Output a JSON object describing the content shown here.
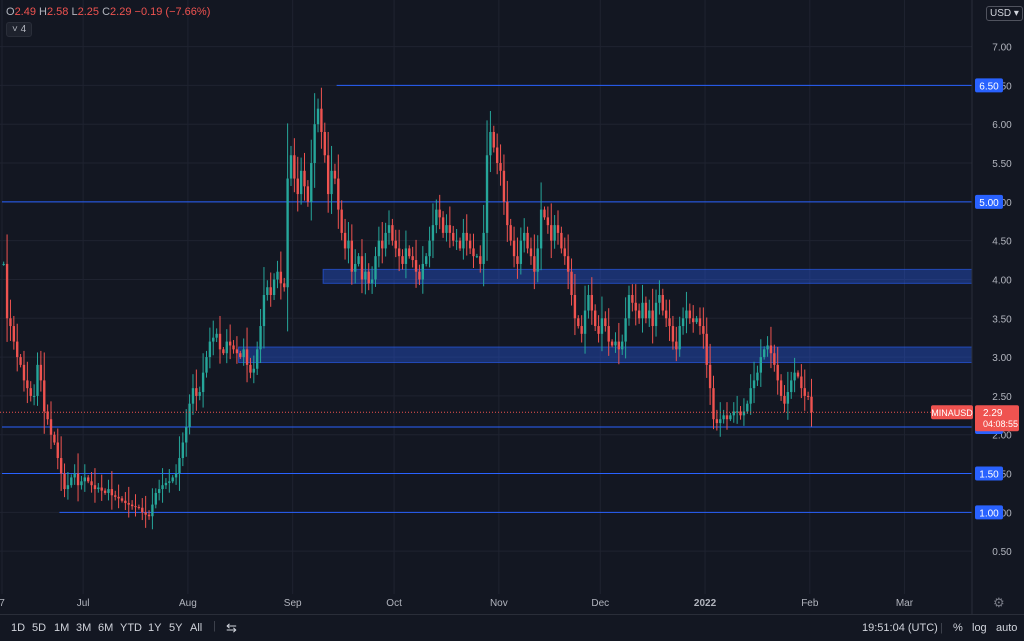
{
  "ohlc": {
    "o_label": "O",
    "o": "2.49",
    "h_label": "H",
    "h": "2.58",
    "l_label": "L",
    "l": "2.25",
    "c_label": "C",
    "c": "2.29",
    "change": "−0.19 (−7.66%)"
  },
  "indicator_toggle": "4",
  "currency": "USD",
  "toolbar": {
    "ranges": [
      "1D",
      "5D",
      "1M",
      "3M",
      "6M",
      "YTD",
      "1Y",
      "5Y",
      "All"
    ],
    "clock": "19:51:04 (UTC)",
    "percent": "%",
    "log": "log",
    "auto": "auto"
  },
  "colors": {
    "up": "#26a69a",
    "down": "#ef5350",
    "zone": "#2962ff",
    "level": "#2962ff",
    "bg": "#131722",
    "grid": "#1f2330"
  },
  "chart_data": {
    "type": "candlestick",
    "symbol": "MINAUSD",
    "last_price": "2.29",
    "countdown": "04:08:55",
    "ylim": [
      0,
      7.6
    ],
    "y_ticks": [
      "0.50",
      "1.00",
      "1.50",
      "2.00",
      "2.50",
      "3.00",
      "3.50",
      "4.00",
      "4.50",
      "5.00",
      "5.50",
      "6.00",
      "6.50",
      "7.00"
    ],
    "x_ticks": [
      {
        "label": "7",
        "day": 0
      },
      {
        "label": "Jul",
        "day": 24
      },
      {
        "label": "Aug",
        "day": 55
      },
      {
        "label": "Sep",
        "day": 86
      },
      {
        "label": "Oct",
        "day": 116
      },
      {
        "label": "Nov",
        "day": 147
      },
      {
        "label": "Dec",
        "day": 177
      },
      {
        "label": "2022",
        "day": 208
      },
      {
        "label": "Feb",
        "day": 239
      },
      {
        "label": "Mar",
        "day": 267
      }
    ],
    "levels": [
      {
        "value": 6.5,
        "label": "6.50",
        "start_day": 99
      },
      {
        "value": 5.0,
        "label": "5.00",
        "start_day": 0
      },
      {
        "value": 2.1,
        "label": "2.10",
        "start_day": 0
      },
      {
        "value": 1.5,
        "label": "1.50",
        "start_day": 0
      },
      {
        "value": 1.0,
        "label": "1.00",
        "start_day": 17
      }
    ],
    "zones": [
      {
        "low": 3.95,
        "high": 4.13,
        "start_day": 95
      },
      {
        "low": 2.93,
        "high": 3.13,
        "start_day": 70
      }
    ],
    "series_close": [
      4.2,
      3.5,
      3.4,
      3.2,
      3.0,
      2.9,
      2.7,
      2.6,
      2.5,
      2.5,
      2.9,
      2.7,
      2.3,
      2.2,
      2.0,
      1.9,
      1.7,
      1.5,
      1.3,
      1.35,
      1.45,
      1.5,
      1.35,
      1.4,
      1.45,
      1.4,
      1.35,
      1.3,
      1.32,
      1.28,
      1.25,
      1.3,
      1.22,
      1.2,
      1.18,
      1.15,
      1.12,
      1.1,
      1.08,
      1.07,
      1.06,
      1.0,
      0.97,
      0.95,
      1.1,
      1.25,
      1.3,
      1.35,
      1.38,
      1.4,
      1.45,
      1.5,
      1.7,
      1.9,
      2.1,
      2.4,
      2.6,
      2.5,
      2.55,
      2.8,
      3.0,
      3.2,
      3.25,
      3.3,
      3.1,
      3.05,
      3.2,
      3.15,
      3.1,
      3.05,
      3.0,
      3.1,
      2.9,
      2.8,
      2.85,
      3.1,
      3.4,
      3.8,
      3.9,
      3.8,
      4.0,
      4.1,
      3.95,
      3.9,
      5.3,
      5.6,
      5.3,
      5.1,
      5.4,
      5.2,
      5.0,
      5.5,
      6.0,
      6.2,
      5.9,
      5.6,
      5.1,
      5.4,
      5.3,
      4.9,
      4.6,
      4.4,
      4.5,
      4.1,
      4.2,
      4.3,
      4.0,
      4.1,
      3.95,
      4.0,
      4.3,
      4.5,
      4.4,
      4.6,
      4.7,
      4.5,
      4.4,
      4.3,
      4.2,
      4.4,
      4.3,
      4.25,
      4.1,
      4.0,
      4.2,
      4.3,
      4.5,
      4.7,
      4.9,
      4.8,
      4.6,
      4.7,
      4.6,
      4.5,
      4.5,
      4.4,
      4.6,
      4.5,
      4.4,
      4.3,
      4.3,
      4.2,
      4.6,
      5.6,
      5.9,
      5.7,
      5.5,
      5.4,
      5.0,
      4.7,
      4.5,
      4.3,
      4.2,
      4.5,
      4.6,
      4.4,
      4.3,
      4.1,
      4.4,
      4.9,
      4.8,
      4.7,
      4.5,
      4.7,
      4.6,
      4.4,
      4.3,
      4.1,
      3.8,
      3.5,
      3.4,
      3.3,
      3.6,
      3.8,
      3.6,
      3.4,
      3.3,
      3.5,
      3.4,
      3.2,
      3.15,
      3.2,
      3.1,
      3.2,
      3.5,
      3.8,
      3.7,
      3.6,
      3.5,
      3.7,
      3.5,
      3.6,
      3.4,
      3.7,
      3.8,
      3.6,
      3.5,
      3.4,
      3.2,
      3.1,
      3.4,
      3.5,
      3.6,
      3.5,
      3.45,
      3.5,
      3.4,
      3.3,
      2.9,
      2.6,
      2.2,
      2.15,
      2.2,
      2.25,
      2.2,
      2.25,
      2.3,
      2.3,
      2.25,
      2.3,
      2.4,
      2.6,
      2.7,
      2.8,
      3.0,
      3.1,
      3.15,
      3.05,
      2.9,
      2.7,
      2.5,
      2.4,
      2.55,
      2.7,
      2.8,
      2.75,
      2.6,
      2.5,
      2.49,
      2.29
    ]
  }
}
